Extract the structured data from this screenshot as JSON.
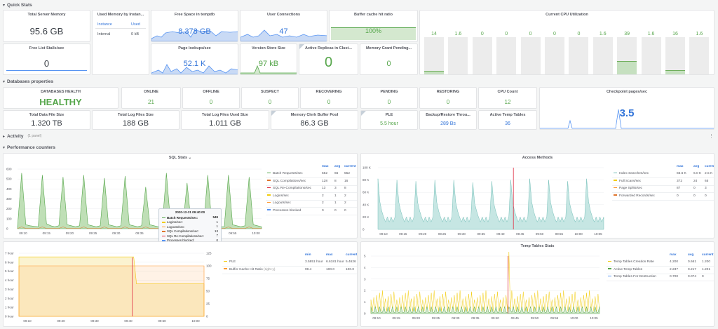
{
  "rows": {
    "quick_stats": "Quick Stats",
    "db_props": "Databases properties",
    "activity": "Activity",
    "activity_sub": "(1 panel)",
    "perf": "Performance counters"
  },
  "colors": {
    "green": "#56a64b",
    "blue": "#3274d9",
    "red": "#e02f44",
    "orange": "#ff780a",
    "yellow": "#f2cc0c",
    "cyan": "#73bfb8"
  },
  "quick": {
    "total_mem": {
      "title": "Total Server Memory",
      "value": "95.6 GB"
    },
    "used_mem": {
      "title": "Used Memory by Instan...",
      "col1": "Instance",
      "col2": "Used",
      "row_name": "Internal",
      "row_val": "0 kB"
    },
    "free_tempdb": {
      "title": "Free Space in tempdb",
      "value": "8.378 GB"
    },
    "user_conn": {
      "title": "User Connections",
      "value": "47"
    },
    "buffer_hit": {
      "title": "Buffer cache hit ratio",
      "value": "100%"
    },
    "free_list": {
      "title": "Free List Stalls/sec",
      "value": "0"
    },
    "page_lookups": {
      "title": "Page lookups/sec",
      "value": "52.1 K"
    },
    "version_store": {
      "title": "Version Store Size",
      "value": "97 kB"
    },
    "active_replicas": {
      "title": "Active Replicas in Clust...",
      "value": "0"
    },
    "mem_grant": {
      "title": "Memory Grant Pending...",
      "value": "0"
    }
  },
  "cpu": {
    "title": "Current CPU Utilization",
    "bars": [
      {
        "label": "cpu_0",
        "value": "14",
        "pct": 14
      },
      {
        "label": "cpu_1",
        "value": "1.6",
        "pct": 1.6
      },
      {
        "label": "cpu_10",
        "value": "0",
        "pct": 0
      },
      {
        "label": "cpu_11",
        "value": "0",
        "pct": 0
      },
      {
        "label": "cpu_2",
        "value": "0",
        "pct": 0
      },
      {
        "label": "cpu_3",
        "value": "0",
        "pct": 0
      },
      {
        "label": "cpu_4",
        "value": "0",
        "pct": 0
      },
      {
        "label": "cpu_5",
        "value": "1.6",
        "pct": 1.6
      },
      {
        "label": "cpu_6",
        "value": "39",
        "pct": 39
      },
      {
        "label": "cpu_7",
        "value": "1.6",
        "pct": 1.6
      },
      {
        "label": "cpu_8",
        "value": "16",
        "pct": 16
      },
      {
        "label": "cpu_9",
        "value": "1.6",
        "pct": 1.6
      }
    ]
  },
  "db": {
    "health": {
      "title": "DATABASES HEALTH",
      "value": "HEALTHY"
    },
    "online": {
      "title": "ONLINE",
      "value": "21"
    },
    "offline": {
      "title": "OFFLINE",
      "value": "0"
    },
    "suspect": {
      "title": "SUSPECT",
      "value": "0"
    },
    "recovering": {
      "title": "RECOVERING",
      "value": "0"
    },
    "pending": {
      "title": "PENDING",
      "value": "0"
    },
    "restoring": {
      "title": "RESTORING",
      "value": "0"
    },
    "cpu_count": {
      "title": "CPU Count",
      "value": "12"
    },
    "checkpoint": {
      "title": "Checkpoint pages/sec",
      "value": "3.5"
    },
    "data_file": {
      "title": "Total Data File Size",
      "value": "1.320 TB"
    },
    "log_files": {
      "title": "Total Log Files Size",
      "value": "188 GB"
    },
    "log_used": {
      "title": "Total Log Files Used Size",
      "value": "1.011 GB"
    },
    "mem_clerk": {
      "title": "Memory Clerk Buffer Pool",
      "value": "86.3 GB"
    },
    "ple": {
      "title": "PLE",
      "value": "5.5 hour"
    },
    "backup": {
      "title": "Backup/Restore Throu...",
      "value": "289 Bs"
    },
    "temp_tables": {
      "title": "Active Temp Tables",
      "value": "36"
    }
  },
  "sql_stats": {
    "title": "SQL Stats",
    "headers": [
      "max",
      "avg",
      "current"
    ],
    "rows": [
      {
        "name": "Batch Requests/sec",
        "max": "552",
        "avg": "66",
        "cur": "552",
        "color": "#56a64b"
      },
      {
        "name": "SQL Compilations/sec",
        "max": "128",
        "avg": "8",
        "cur": "16",
        "color": "#e0752d"
      },
      {
        "name": "SQL Re-Compilations/sec",
        "max": "13",
        "avg": "3",
        "cur": "8",
        "color": "#e02f44"
      },
      {
        "name": "Logins/sec",
        "max": "2",
        "avg": "1",
        "cur": "2",
        "color": "#f2cc0c"
      },
      {
        "name": "Logouts/sec",
        "max": "2",
        "avg": "1",
        "cur": "2",
        "color": "#ff9830"
      },
      {
        "name": "Processes blocked",
        "max": "0",
        "avg": "0",
        "cur": "0",
        "color": "#5794f2"
      }
    ],
    "yticks": [
      "600",
      "500",
      "400",
      "300",
      "200",
      "100",
      "0"
    ],
    "xticks": [
      "09:10",
      "09:15",
      "09:20",
      "09:25",
      "09:30",
      "09:35",
      "09:40",
      "09:45",
      "09:50",
      "09:55",
      "10:00"
    ],
    "tooltip": {
      "time": "2020-12-31 09:40:00",
      "rows": [
        {
          "name": "Batch Requests/sec:",
          "value": "549",
          "color": "#56a64b"
        },
        {
          "name": "Logins/sec:",
          "value": "1",
          "color": "#f2cc0c"
        },
        {
          "name": "Logouts/sec:",
          "value": "1",
          "color": "#ff9830"
        },
        {
          "name": "SQL Compilations/sec:",
          "value": "13",
          "color": "#e0752d"
        },
        {
          "name": "SQL Re-Compilations/sec:",
          "value": "7",
          "color": "#e02f44"
        },
        {
          "name": "Processes blocked:",
          "value": "0",
          "color": "#5794f2"
        }
      ]
    },
    "series": [
      20,
      560,
      40,
      30,
      25,
      20,
      540,
      50,
      30,
      20,
      30,
      520,
      40,
      30,
      20,
      30,
      540,
      40,
      30,
      20,
      30,
      510,
      40,
      30,
      20,
      30,
      530,
      40,
      30,
      20,
      30,
      420,
      40,
      30,
      20,
      30,
      560,
      60,
      40,
      30,
      30,
      460,
      40,
      30,
      20,
      30,
      540,
      40,
      30,
      20,
      20,
      540,
      40,
      30,
      20,
      30,
      520,
      40,
      30,
      20
    ]
  },
  "access": {
    "title": "Access Methods",
    "headers": [
      "max",
      "avg",
      "current"
    ],
    "rows": [
      {
        "name": "Index Searches/sec",
        "max": "83.6 K",
        "avg": "6.0 K",
        "cur": "2.5 K",
        "color": "#73bfb8"
      },
      {
        "name": "Full Scans/sec",
        "max": "372",
        "avg": "24",
        "cur": "65",
        "color": "#f2cc0c"
      },
      {
        "name": "Page Splits/sec",
        "max": "87",
        "avg": "0",
        "cur": "3",
        "color": "#ff9830"
      },
      {
        "name": "Forwarded Records/sec",
        "max": "0",
        "avg": "0",
        "cur": "0",
        "color": "#e0752d"
      }
    ],
    "yticks": [
      "100 K",
      "80 K",
      "60 K",
      "40 K",
      "20 K",
      "0"
    ],
    "xticks": [
      "09:10",
      "09:15",
      "09:20",
      "09:25",
      "09:30",
      "09:35",
      "09:40",
      "09:45",
      "09:50",
      "09:55",
      "10:00",
      "10:05"
    ]
  },
  "ple_panel": {
    "headers": [
      "min",
      "max",
      "current"
    ],
    "rows": [
      {
        "name": "PLE",
        "min": "3.5851 hour",
        "max": "6.6181 hour",
        "cur": "5.4626 hour",
        "color": "#f2cc0c"
      },
      {
        "name": "Buffer Cache Hit Ratio",
        "note": "(right-y)",
        "min": "99.4",
        "max": "100.0",
        "cur": "100.0",
        "color": "#ff9830"
      }
    ],
    "yticks_left": [
      "7 hour",
      "6 hour",
      "5 hour",
      "4 hour",
      "3 hour",
      "2 hour",
      "1 hour",
      "0 hour"
    ],
    "yticks_right": [
      "125",
      "100",
      "75",
      "50",
      "25",
      "0"
    ],
    "xticks": [
      "09:10",
      "09:20",
      "09:30",
      "09:40",
      "09:50",
      "10:00"
    ]
  },
  "temp_panel": {
    "title": "Temp Tables Stats",
    "headers": [
      "max",
      "avg",
      "current"
    ],
    "rows": [
      {
        "name": "Temp Tables Creation Rate",
        "max": "4.200",
        "avg": "0.661",
        "cur": "1.200",
        "color": "#f2cc0c"
      },
      {
        "name": "Active Temp Tables",
        "max": "2.237",
        "avg": "0.217",
        "cur": "1.201",
        "color": "#56a64b"
      },
      {
        "name": "Temp Tables For Destruction",
        "max": "0.700",
        "avg": "0.074",
        "cur": "0",
        "color": "#5794f2"
      }
    ],
    "yticks": [
      "5",
      "4",
      "3",
      "2",
      "1",
      "0"
    ],
    "xticks": [
      "09:10",
      "09:15",
      "09:20",
      "09:25",
      "09:30",
      "09:35",
      "09:40",
      "09:45",
      "09:50",
      "09:55",
      "10:00",
      "10:05"
    ]
  }
}
